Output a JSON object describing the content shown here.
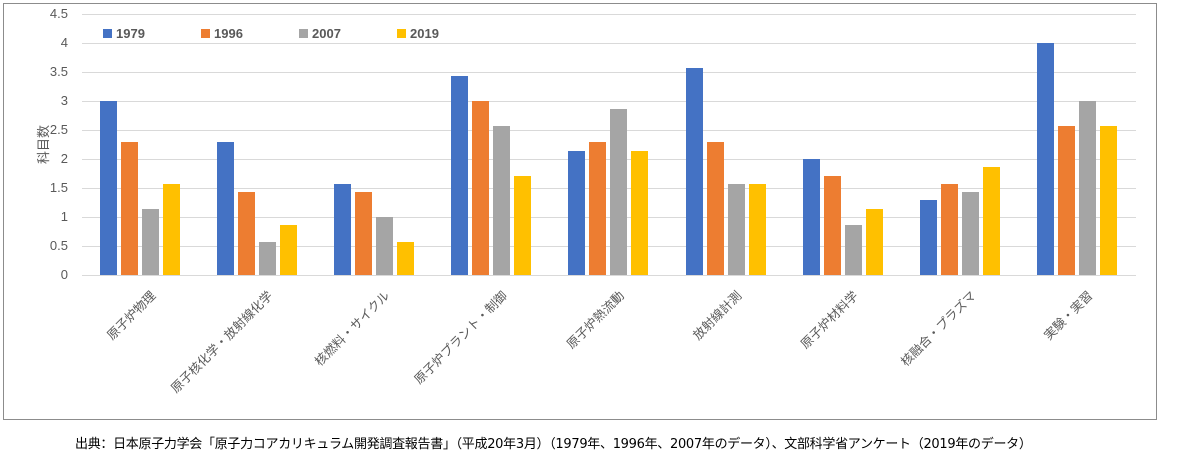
{
  "chart_data": {
    "type": "bar",
    "title": "",
    "xlabel": "",
    "ylabel": "科目数",
    "ylim": [
      0,
      4.5
    ],
    "yticks": [
      "0",
      "0.5",
      "1",
      "1.5",
      "2",
      "2.5",
      "3",
      "3.5",
      "4",
      "4.5"
    ],
    "grid": true,
    "legend_position": "top-left inside",
    "categories": [
      "原子炉物理",
      "原子核化学・放射線化学",
      "核燃料・サイクル",
      "原子炉プラント・制御",
      "原子炉熱流動",
      "放射線計測",
      "原子炉材料学",
      "核融合・プラズマ",
      "実験・実習"
    ],
    "series": [
      {
        "name": "1979",
        "color": "#4472C4",
        "values": [
          3.0,
          2.29,
          1.57,
          3.43,
          2.14,
          3.57,
          2.0,
          1.29,
          4.0
        ]
      },
      {
        "name": "1996",
        "color": "#ED7D31",
        "values": [
          2.29,
          1.43,
          1.43,
          3.0,
          2.29,
          2.29,
          1.71,
          1.57,
          2.57
        ]
      },
      {
        "name": "2007",
        "color": "#A5A5A5",
        "values": [
          1.14,
          0.57,
          1.0,
          2.57,
          2.86,
          1.57,
          0.86,
          1.43,
          3.0
        ]
      },
      {
        "name": "2019",
        "color": "#FFC000",
        "values": [
          1.57,
          0.86,
          0.57,
          1.71,
          2.14,
          1.57,
          1.14,
          1.86,
          2.57
        ]
      }
    ]
  },
  "caption": "出典：日本原子力学会「原子力コアカリキュラム開発調査報告書」（平成20年3月）（1979年、1996年、2007年のデータ）、文部科学省アンケート（2019年のデータ）"
}
